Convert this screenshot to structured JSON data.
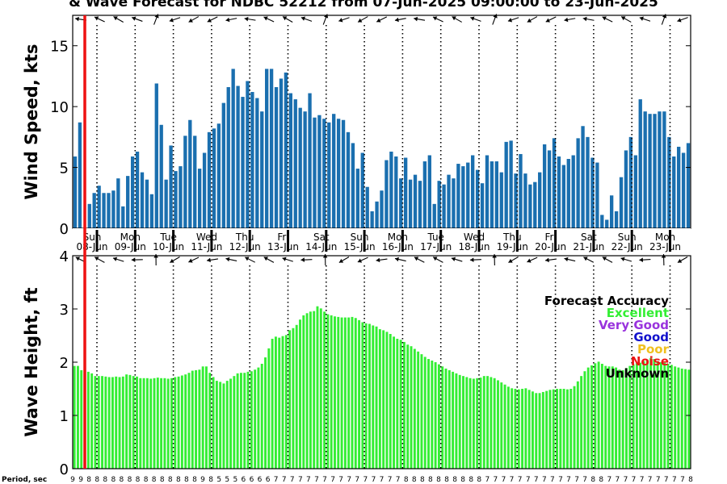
{
  "title": "& Wave Forecast for NDBC 52212 from 07-Jun-2025 09:00:00 to 23-Jun-2025",
  "wind_ylabel": "Wind Speed, kts",
  "wave_ylabel": "Wave Height, ft",
  "period_label": "Period, sec",
  "legend": {
    "title": "Forecast Accuracy",
    "items": [
      {
        "label": "Excellent",
        "color": "#33ee33"
      },
      {
        "label": "Very Good",
        "color": "#9933dd"
      },
      {
        "label": "Good",
        "color": "#1111cc"
      },
      {
        "label": "Poor",
        "color": "#f0c020"
      },
      {
        "label": "Noise",
        "color": "#ee1111"
      },
      {
        "label": "Unknown",
        "color": "#000000"
      }
    ]
  },
  "colors": {
    "wind_bar": "#1a6faf",
    "wave_bar": "#33ee33",
    "now_line": "#ee1111"
  },
  "days": [
    {
      "name": "Sun",
      "date": "08-Jun"
    },
    {
      "name": "Mon",
      "date": "09-Jun"
    },
    {
      "name": "Tue",
      "date": "10-Jun"
    },
    {
      "name": "Wed",
      "date": "11-Jun"
    },
    {
      "name": "Thu",
      "date": "12-Jun"
    },
    {
      "name": "Fri",
      "date": "13-Jun"
    },
    {
      "name": "Sat",
      "date": "14-Jun"
    },
    {
      "name": "Sun",
      "date": "15-Jun"
    },
    {
      "name": "Mon",
      "date": "16-Jun"
    },
    {
      "name": "Tue",
      "date": "17-Jun"
    },
    {
      "name": "Wed",
      "date": "18-Jun"
    },
    {
      "name": "Thu",
      "date": "19-Jun"
    },
    {
      "name": "Fri",
      "date": "20-Jun"
    },
    {
      "name": "Sat",
      "date": "21-Jun"
    },
    {
      "name": "Sun",
      "date": "22-Jun"
    },
    {
      "name": "Mon",
      "date": "23-Jun"
    }
  ],
  "periods": [
    "9",
    "9",
    "8",
    "8",
    "8",
    "8",
    "8",
    "8",
    "8",
    "8",
    "8",
    "8",
    "8",
    "8",
    "8",
    "8",
    "9",
    "8",
    "5",
    "5",
    "5",
    "6",
    "6",
    "6",
    "6",
    "7",
    "7",
    "7",
    "7",
    "7",
    "7",
    "7",
    "7",
    "7",
    "7",
    "7",
    "7",
    "7",
    "7",
    "7",
    "7",
    "8",
    "8",
    "8",
    "8",
    "8",
    "8",
    "8",
    "8",
    "8",
    "8",
    "7",
    "7",
    "7",
    "7",
    "7",
    "7",
    "7",
    "7",
    "7",
    "7",
    "7",
    "7",
    "7",
    "8",
    "8",
    "7",
    "7",
    "7",
    "7",
    "7",
    "7",
    "7",
    "7",
    "7",
    "7",
    "8"
  ],
  "chart_data": [
    {
      "type": "bar",
      "title": "& Wave Forecast for NDBC 52212 from 07-Jun-2025 09:00:00 to 23-Jun-2025",
      "ylabel": "Wind Speed, kts",
      "ylim": [
        0,
        17.5
      ],
      "yticks": [
        0,
        5,
        10,
        15
      ],
      "x_unit": "hour",
      "values": [
        5.9,
        8.7,
        0,
        2.0,
        2.9,
        3.5,
        2.9,
        2.9,
        3.1,
        4.1,
        1.8,
        4.3,
        5.9,
        6.3,
        4.6,
        4.0,
        2.8,
        11.9,
        8.5,
        4.0,
        6.8,
        4.7,
        5.1,
        7.6,
        8.9,
        7.6,
        4.9,
        6.2,
        7.9,
        8.2,
        8.6,
        10.3,
        11.6,
        13.1,
        11.7,
        10.8,
        12.1,
        11.2,
        10.7,
        9.6,
        13.1,
        13.1,
        11.6,
        12.3,
        12.8,
        11.1,
        10.6,
        9.9,
        9.6,
        11.1,
        9.1,
        9.3,
        9.0,
        8.7,
        9.4,
        9.0,
        8.9,
        7.9,
        7.0,
        4.9,
        6.2,
        3.4,
        1.4,
        2.2,
        3.1,
        5.6,
        6.3,
        5.9,
        4.1,
        5.8,
        4.0,
        4.4,
        3.9,
        5.5,
        6.0,
        2.0,
        3.9,
        3.6,
        4.4,
        4.1,
        5.3,
        5.1,
        5.4,
        6.0,
        4.8,
        3.7,
        6.0,
        5.5,
        5.5,
        4.6,
        7.1,
        7.2,
        4.5,
        6.1,
        4.5,
        3.6,
        3.8,
        4.6,
        6.9,
        6.4,
        7.4,
        5.9,
        5.2,
        5.7,
        6.0,
        7.4,
        8.4,
        7.5,
        5.8,
        5.4,
        1.1,
        0.7,
        2.7,
        1.4,
        4.2,
        6.4,
        7.5,
        6.0,
        10.6,
        9.6,
        9.4,
        9.4,
        9.6,
        9.6,
        7.5,
        5.9,
        6.7,
        6.2,
        7.0
      ]
    },
    {
      "type": "bar",
      "ylabel": "Wave Height, ft",
      "ylim": [
        0,
        4
      ],
      "yticks": [
        0,
        1,
        2,
        3,
        4
      ],
      "x_unit": "hour",
      "values": [
        1.93,
        1.93,
        1.85,
        1.87,
        1.82,
        1.79,
        1.74,
        1.74,
        1.74,
        1.73,
        1.72,
        1.72,
        1.73,
        1.72,
        1.73,
        1.77,
        1.76,
        1.74,
        1.73,
        1.7,
        1.7,
        1.7,
        1.69,
        1.7,
        1.71,
        1.7,
        1.7,
        1.69,
        1.7,
        1.72,
        1.73,
        1.75,
        1.77,
        1.8,
        1.84,
        1.85,
        1.86,
        1.92,
        1.92,
        1.8,
        1.72,
        1.65,
        1.63,
        1.6,
        1.65,
        1.69,
        1.74,
        1.79,
        1.8,
        1.8,
        1.82,
        1.83,
        1.86,
        1.9,
        1.97,
        2.09,
        2.26,
        2.44,
        2.48,
        2.46,
        2.49,
        2.51,
        2.6,
        2.64,
        2.7,
        2.8,
        2.88,
        2.92,
        2.95,
        2.96,
        3.05,
        3.01,
        2.95,
        2.9,
        2.88,
        2.86,
        2.85,
        2.84,
        2.84,
        2.84,
        2.85,
        2.83,
        2.79,
        2.75,
        2.73,
        2.72,
        2.69,
        2.67,
        2.62,
        2.6,
        2.57,
        2.53,
        2.48,
        2.44,
        2.42,
        2.38,
        2.33,
        2.3,
        2.25,
        2.2,
        2.15,
        2.1,
        2.06,
        2.03,
        2.0,
        1.96,
        1.92,
        1.88,
        1.85,
        1.82,
        1.79,
        1.76,
        1.74,
        1.72,
        1.7,
        1.69,
        1.7,
        1.71,
        1.74,
        1.74,
        1.72,
        1.7,
        1.66,
        1.62,
        1.58,
        1.54,
        1.51,
        1.5,
        1.49,
        1.5,
        1.51,
        1.48,
        1.45,
        1.42,
        1.42,
        1.44,
        1.46,
        1.48,
        1.49,
        1.5,
        1.5,
        1.5,
        1.49,
        1.5,
        1.55,
        1.64,
        1.74,
        1.83,
        1.9,
        1.94,
        1.98,
        2.01,
        1.97,
        1.93,
        1.92,
        1.92,
        1.9,
        1.86,
        1.85,
        1.89,
        1.93,
        1.96,
        1.98,
        1.99,
        2.02,
        2.05,
        2.08,
        2.06,
        2.02,
        2.0,
        1.99,
        1.97,
        1.95,
        1.92,
        1.9,
        1.88,
        1.87,
        1.86
      ]
    }
  ]
}
